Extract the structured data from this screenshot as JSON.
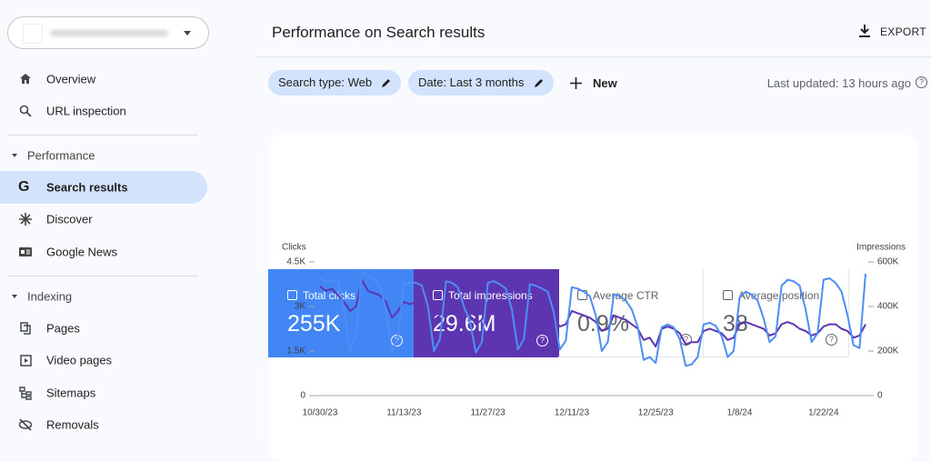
{
  "nav": {
    "top": [
      "Overview",
      "URL inspection"
    ],
    "sections": [
      {
        "title": "Performance",
        "items": [
          "Search results",
          "Discover",
          "Google News"
        ]
      },
      {
        "title": "Indexing",
        "items": [
          "Pages",
          "Video pages",
          "Sitemaps",
          "Removals"
        ]
      }
    ]
  },
  "header": {
    "title": "Performance on Search results",
    "export": "EXPORT"
  },
  "filters": {
    "chips": [
      "Search type: Web",
      "Date: Last 3 months"
    ],
    "new": "New",
    "last_updated": "Last updated: 13 hours ago"
  },
  "metrics": [
    {
      "label": "Total clicks",
      "value": "255K"
    },
    {
      "label": "Total impressions",
      "value": "29.6M"
    },
    {
      "label": "Average CTR",
      "value": "0.9%"
    },
    {
      "label": "Average position",
      "value": "38"
    }
  ],
  "chart_data": {
    "type": "line",
    "x": [
      "10/30/23",
      "10/31/23",
      "11/1/23",
      "11/2/23",
      "11/3/23",
      "11/4/23",
      "11/5/23",
      "11/6/23",
      "11/7/23",
      "11/8/23",
      "11/9/23",
      "11/10/23",
      "11/11/23",
      "11/12/23",
      "11/13/23",
      "11/14/23",
      "11/15/23",
      "11/16/23",
      "11/17/23",
      "11/18/23",
      "11/19/23",
      "11/20/23",
      "11/21/23",
      "11/22/23",
      "11/23/23",
      "11/24/23",
      "11/25/23",
      "11/26/23",
      "11/27/23",
      "11/28/23",
      "11/29/23",
      "11/30/23",
      "12/1/23",
      "12/2/23",
      "12/3/23",
      "12/4/23",
      "12/5/23",
      "12/6/23",
      "12/7/23",
      "12/8/23",
      "12/9/23",
      "12/10/23",
      "12/11/23",
      "12/12/23",
      "12/13/23",
      "12/14/23",
      "12/15/23",
      "12/16/23",
      "12/17/23",
      "12/18/23",
      "12/19/23",
      "12/20/23",
      "12/21/23",
      "12/22/23",
      "12/23/23",
      "12/24/23",
      "12/25/23",
      "12/26/23",
      "12/27/23",
      "12/28/23",
      "12/29/23",
      "12/30/23",
      "12/31/23",
      "1/1/24",
      "1/2/24",
      "1/3/24",
      "1/4/24",
      "1/5/24",
      "1/6/24",
      "1/7/24",
      "1/8/24",
      "1/9/24",
      "1/10/24",
      "1/11/24",
      "1/12/24",
      "1/13/24",
      "1/14/24",
      "1/15/24",
      "1/16/24",
      "1/17/24",
      "1/18/24",
      "1/19/24",
      "1/20/24",
      "1/21/24",
      "1/22/24",
      "1/23/24",
      "1/24/24",
      "1/25/24",
      "1/26/24",
      "1/27/24",
      "1/28/24",
      "1/29/24"
    ],
    "xticks": [
      "10/30/23",
      "11/13/23",
      "11/27/23",
      "12/11/23",
      "12/25/23",
      "1/8/24",
      "1/22/24"
    ],
    "ylabel": "Clicks",
    "y2label": "Impressions",
    "ylim": [
      0,
      4500
    ],
    "yticks": [
      0,
      {
        "value": 1500,
        "label": "1.5K"
      },
      {
        "value": 3000,
        "label": "3K"
      },
      {
        "value": 4500,
        "label": "4.5K"
      }
    ],
    "y2lim": [
      0,
      600000
    ],
    "y2ticks": [
      0,
      {
        "value": 200000,
        "label": "200K"
      },
      {
        "value": 400000,
        "label": "400K"
      },
      {
        "value": 600000,
        "label": "600K"
      }
    ],
    "series": [
      {
        "name": "Total clicks",
        "color": "#4d8ef5",
        "values": [
          3950,
          3850,
          3850,
          3900,
          2900,
          1500,
          2100,
          4150,
          4050,
          3900,
          3700,
          2900,
          1450,
          2000,
          3750,
          3800,
          3800,
          3700,
          3000,
          1500,
          1900,
          3850,
          3800,
          3650,
          3000,
          2500,
          1450,
          1800,
          3800,
          3850,
          3750,
          3600,
          2900,
          1550,
          1900,
          3750,
          3700,
          3600,
          3500,
          2800,
          1550,
          1850,
          3650,
          3600,
          3500,
          3350,
          2700,
          1500,
          1800,
          3400,
          3350,
          3200,
          2900,
          2300,
          1200,
          1300,
          1100,
          2300,
          2400,
          2300,
          1900,
          1000,
          1050,
          1300,
          2400,
          2450,
          2350,
          2000,
          1300,
          1500,
          3300,
          3500,
          3400,
          3200,
          2600,
          1800,
          2000,
          3700,
          3900,
          3850,
          3700,
          2900,
          1800,
          2100,
          3900,
          3950,
          3800,
          3500,
          2700,
          1700,
          1600,
          4100
        ]
      },
      {
        "name": "Total impressions",
        "color": "#5e35b1",
        "axis": "y2",
        "values": [
          490000,
          470000,
          480000,
          450000,
          420000,
          380000,
          400000,
          520000,
          470000,
          460000,
          450000,
          420000,
          350000,
          380000,
          420000,
          410000,
          420000,
          410000,
          390000,
          340000,
          360000,
          450000,
          430000,
          420000,
          380000,
          360000,
          320000,
          340000,
          420000,
          400000,
          400000,
          390000,
          370000,
          330000,
          340000,
          400000,
          390000,
          380000,
          370000,
          350000,
          310000,
          320000,
          380000,
          370000,
          360000,
          350000,
          330000,
          290000,
          300000,
          360000,
          350000,
          340000,
          320000,
          300000,
          250000,
          260000,
          220000,
          300000,
          310000,
          300000,
          280000,
          230000,
          240000,
          240000,
          290000,
          300000,
          290000,
          280000,
          250000,
          260000,
          320000,
          330000,
          320000,
          310000,
          300000,
          270000,
          280000,
          320000,
          330000,
          320000,
          300000,
          290000,
          270000,
          280000,
          310000,
          320000,
          320000,
          300000,
          290000,
          260000,
          270000,
          320000
        ]
      }
    ]
  }
}
